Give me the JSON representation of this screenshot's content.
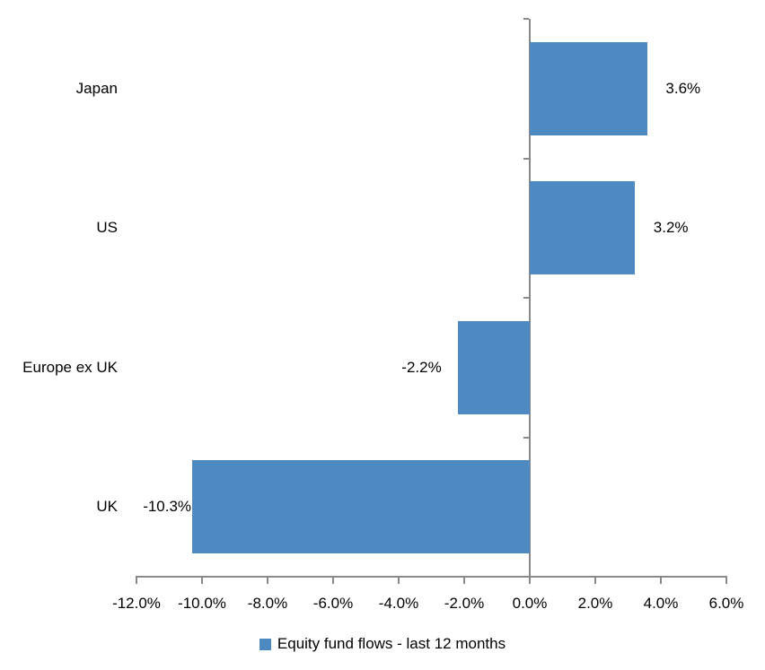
{
  "chart_data": {
    "type": "bar",
    "orientation": "horizontal",
    "title": "",
    "categories": [
      "Japan",
      "US",
      "Europe ex UK",
      "UK"
    ],
    "values": [
      3.6,
      3.2,
      -2.2,
      -10.3
    ],
    "value_labels": [
      "3.6%",
      "3.2%",
      "-2.2%",
      "-10.3%"
    ],
    "xlim": [
      -12,
      6
    ],
    "x_tick_values": [
      -12,
      -10,
      -8,
      -6,
      -4,
      -2,
      0,
      2,
      4,
      6
    ],
    "x_tick_labels": [
      "-12.0%",
      "-10.0%",
      "-8.0%",
      "-6.0%",
      "-4.0%",
      "-2.0%",
      "0.0%",
      "2.0%",
      "4.0%",
      "6.0%"
    ],
    "grid": false,
    "legend_position": "bottom",
    "legend": [
      {
        "label": "Equity fund flows - last 12 months",
        "color": "#4F89C1"
      }
    ],
    "colors": {
      "bar": "#4F89C1",
      "axis": "#898989",
      "text": "#000000",
      "background": "#FFFFFF"
    }
  }
}
